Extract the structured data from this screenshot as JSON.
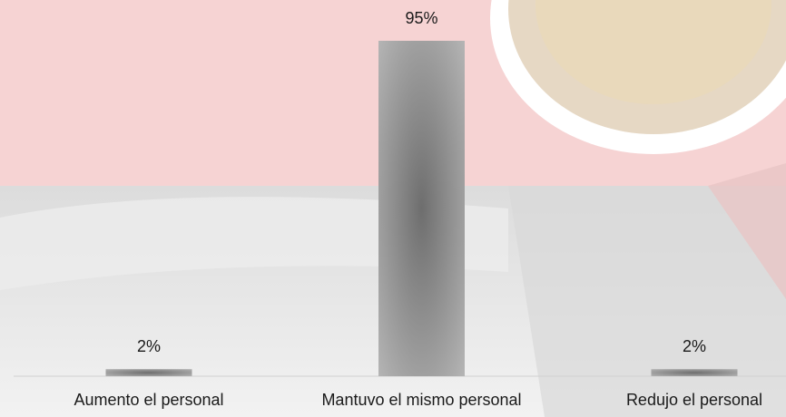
{
  "chart_data": {
    "type": "bar",
    "categories": [
      "Aumento el personal",
      "Mantuvo el mismo personal",
      "Redujo el personal"
    ],
    "values": [
      2,
      95,
      2
    ],
    "value_labels": [
      "2%",
      "95%",
      "2%"
    ],
    "color": "#6e6e6e"
  }
}
